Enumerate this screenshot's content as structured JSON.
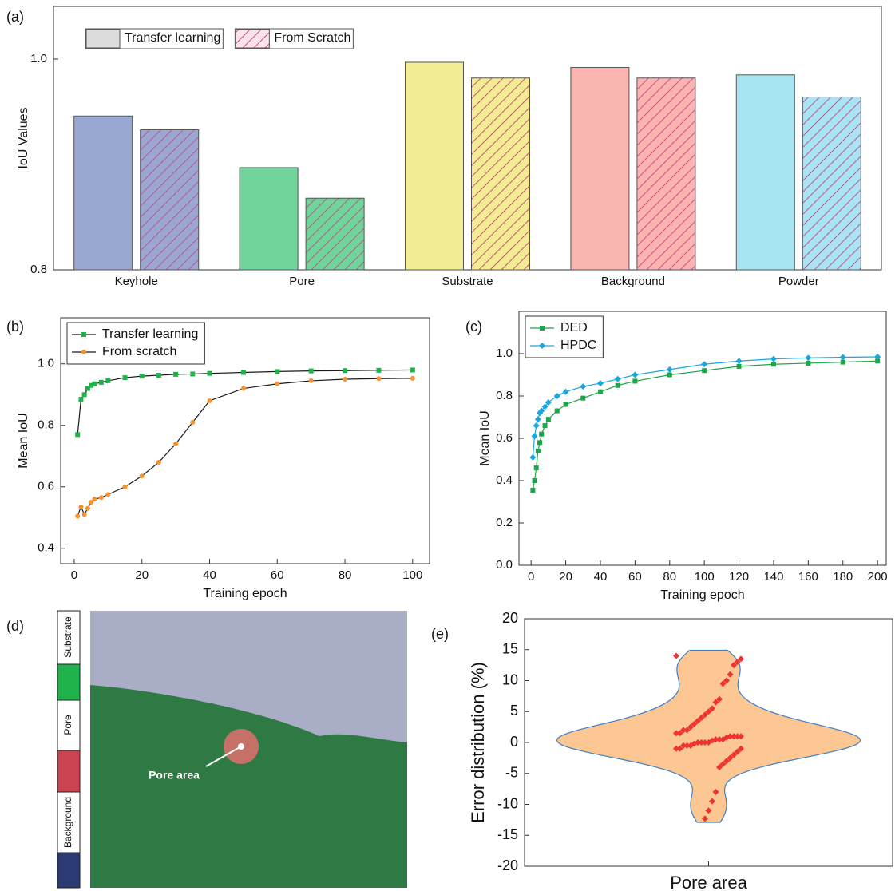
{
  "chart_data": [
    {
      "type": "bar",
      "panel_label": "(a)",
      "ylabel": "IoU Values",
      "categories": [
        "Keyhole",
        "Pore",
        "Substrate",
        "Background",
        "Powder"
      ],
      "series": [
        {
          "name": "Transfer learning",
          "color": "#dcdcdc",
          "colors": [
            "#99a8d1",
            "#6fd59a",
            "#f2ec93",
            "#fbb5b1",
            "#a8e4f2"
          ],
          "values": [
            0.946,
            0.897,
            0.997,
            0.992,
            0.985
          ]
        },
        {
          "name": "From Scratch",
          "color": "#e8409a",
          "hatch": true,
          "colors": [
            "#99a8d1",
            "#6fd59a",
            "#f2ec93",
            "#fbb5b1",
            "#a8e4f2"
          ],
          "values": [
            0.933,
            0.868,
            0.982,
            0.982,
            0.964
          ]
        }
      ],
      "ylim": [
        0.8,
        1.05
      ],
      "yticks": [
        0.8,
        {
          "value": 1,
          "label": "1.0"
        }
      ],
      "legend": "upper left"
    },
    {
      "type": "line",
      "panel_label": "(b)",
      "xlabel": "Training epoch",
      "ylabel": "Mean IoU",
      "x": [
        1,
        2,
        3,
        4,
        5,
        6,
        8,
        10,
        15,
        20,
        25,
        30,
        35,
        40,
        50,
        60,
        70,
        80,
        90,
        100
      ],
      "series": [
        {
          "name": "Transfer learning",
          "color": "#1db34a",
          "marker": "square",
          "values": [
            0.77,
            0.885,
            0.9,
            0.92,
            0.93,
            0.935,
            0.94,
            0.945,
            0.955,
            0.96,
            0.963,
            0.966,
            0.967,
            0.969,
            0.972,
            0.975,
            0.977,
            0.978,
            0.979,
            0.98
          ]
        },
        {
          "name": "From scratch",
          "color": "#f7932f",
          "marker": "circle",
          "values": [
            0.505,
            0.535,
            0.51,
            0.53,
            0.55,
            0.56,
            0.565,
            0.575,
            0.6,
            0.635,
            0.68,
            0.74,
            0.81,
            0.88,
            0.92,
            0.935,
            0.945,
            0.95,
            0.952,
            0.953
          ]
        }
      ],
      "line_color": "#1a1a1a",
      "xlim": [
        -4,
        105
      ],
      "xticks": [
        0,
        20,
        40,
        60,
        80,
        100
      ],
      "ylim": [
        0.35,
        1.15
      ],
      "yticks": [
        0.4,
        0.6,
        0.8,
        {
          "value": 1,
          "label": "1.0"
        }
      ],
      "legend": "upper left"
    },
    {
      "type": "line",
      "panel_label": "(c)",
      "xlabel": "Training epoch",
      "ylabel": "Mean IoU",
      "x": [
        1,
        2,
        3,
        4,
        5,
        6,
        8,
        10,
        15,
        20,
        30,
        40,
        50,
        60,
        80,
        100,
        120,
        140,
        160,
        180,
        200
      ],
      "series": [
        {
          "name": "DED",
          "color": "#1ea54a",
          "marker": "square",
          "values": [
            0.355,
            0.4,
            0.46,
            0.54,
            0.58,
            0.62,
            0.66,
            0.69,
            0.73,
            0.76,
            0.79,
            0.82,
            0.85,
            0.87,
            0.9,
            0.92,
            0.94,
            0.95,
            0.955,
            0.96,
            0.965
          ]
        },
        {
          "name": "HPDC",
          "color": "#1aa7e0",
          "marker": "diamond",
          "values": [
            0.51,
            0.61,
            0.66,
            0.69,
            0.72,
            0.73,
            0.75,
            0.77,
            0.8,
            0.82,
            0.845,
            0.86,
            0.88,
            0.9,
            0.925,
            0.95,
            0.965,
            0.975,
            0.98,
            0.983,
            0.985
          ]
        }
      ],
      "xlim": [
        -7,
        205
      ],
      "xticks": [
        0,
        20,
        40,
        60,
        80,
        100,
        120,
        140,
        160,
        180,
        200
      ],
      "ylim": [
        0,
        1.2
      ],
      "yticks": [
        {
          "value": 0,
          "label": "0.0"
        },
        0.2,
        0.4,
        0.6,
        0.8,
        {
          "value": 1,
          "label": "1.0"
        }
      ],
      "legend": "upper left"
    },
    {
      "type": "violin",
      "panel_label": "(e)",
      "ylabel": "Error distribution (%)",
      "categories": [
        "Pore area"
      ],
      "values": [
        14,
        13.5,
        13,
        12.5,
        11,
        10,
        9.5,
        7,
        6.5,
        5.5,
        5,
        4.5,
        4,
        3.5,
        3,
        2.5,
        2,
        2,
        1.5,
        1.5,
        1,
        1,
        1,
        1,
        0.8,
        0.5,
        0.5,
        0.5,
        0.3,
        0,
        0,
        0,
        0,
        -0.2,
        -0.5,
        -0.5,
        -0.5,
        -1,
        -1,
        -1,
        -1.5,
        -2,
        -2.5,
        -3,
        -3.5,
        -4,
        -8,
        -9.5,
        -11,
        -12.3
      ],
      "color": "#fdc793",
      "edge_color": "#3d7fc4",
      "point_color": "#ee3333",
      "ylim": [
        -20,
        20
      ],
      "yticks": [
        -20,
        -15,
        -10,
        -5,
        0,
        5,
        10,
        15,
        20
      ]
    }
  ],
  "panel_d": {
    "label": "(d)",
    "legend": [
      "Substrate",
      "Pore",
      "Background"
    ],
    "annotation": "Pore area"
  }
}
